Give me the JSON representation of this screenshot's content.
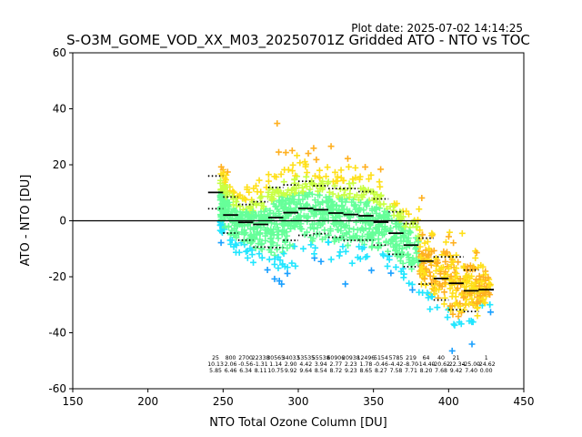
{
  "chart_data": {
    "type": "scatter",
    "title": "S-O3M_GOME_VOD_XX_M03_20250701Z Gridded ATO - NTO vs TOC",
    "plot_date": "Plot date: 2025-07-02 14:14:25",
    "xlabel": "NTO Total Ozone Column [DU]",
    "ylabel": "ATO - NTO [DU]",
    "xlim": [
      150,
      450
    ],
    "ylim": [
      -60,
      60
    ],
    "xticks": [
      150,
      200,
      250,
      300,
      350,
      400,
      450
    ],
    "yticks": [
      -60,
      -40,
      -20,
      0,
      20,
      40,
      60
    ],
    "zero_line": 0,
    "marker": "plus",
    "color_scale": [
      "#0a2bd8",
      "#1aa0ff",
      "#22e6ff",
      "#66ff99",
      "#c8ff44",
      "#ffe01a",
      "#ffb020"
    ],
    "scatter_cloud": {
      "x_range": [
        245,
        425
      ],
      "center_y": -2,
      "note_spread": "dense cloud of plus markers"
    },
    "bins": [
      {
        "x": 245,
        "count": "25",
        "mean": 10.13,
        "sd": 5.85,
        "upper": 16.0,
        "lower": 4.3
      },
      {
        "x": 255,
        "count": "800",
        "mean": 2.06,
        "sd": 6.46,
        "upper": 8.5,
        "lower": -4.4
      },
      {
        "x": 265,
        "count": "2700",
        "mean": -0.56,
        "sd": 6.34,
        "upper": 5.8,
        "lower": -6.9
      },
      {
        "x": 275,
        "count": "22338",
        "mean": -1.31,
        "sd": 8.11,
        "upper": 6.8,
        "lower": -9.4
      },
      {
        "x": 285,
        "count": "30565",
        "mean": 1.14,
        "sd": 10.75,
        "upper": 11.9,
        "lower": -9.6
      },
      {
        "x": 295,
        "count": "34033",
        "mean": 2.9,
        "sd": 9.92,
        "upper": 12.8,
        "lower": -7.0
      },
      {
        "x": 305,
        "count": "53535",
        "mean": 4.42,
        "sd": 9.64,
        "upper": 14.1,
        "lower": -5.2
      },
      {
        "x": 315,
        "count": "55538",
        "mean": 3.94,
        "sd": 8.54,
        "upper": 12.5,
        "lower": -4.6
      },
      {
        "x": 325,
        "count": "60906",
        "mean": 2.77,
        "sd": 8.72,
        "upper": 11.5,
        "lower": -5.9
      },
      {
        "x": 335,
        "count": "20938",
        "mean": 2.23,
        "sd": 9.23,
        "upper": 11.5,
        "lower": -7.0
      },
      {
        "x": 345,
        "count": "12496",
        "mean": 1.78,
        "sd": 8.65,
        "upper": 10.4,
        "lower": -6.9
      },
      {
        "x": 355,
        "count": "5154",
        "mean": -0.46,
        "sd": 8.27,
        "upper": 7.8,
        "lower": -8.7
      },
      {
        "x": 365,
        "count": "5785",
        "mean": -4.42,
        "sd": 7.58,
        "upper": 3.2,
        "lower": -12.0
      },
      {
        "x": 375,
        "count": "219",
        "mean": -8.7,
        "sd": 7.71,
        "upper": -1.0,
        "lower": -16.4
      },
      {
        "x": 385,
        "count": "64",
        "mean": -14.4,
        "sd": 8.2,
        "upper": -6.2,
        "lower": -22.6
      },
      {
        "x": 395,
        "count": "40",
        "mean": -20.6,
        "sd": 7.68,
        "upper": -12.9,
        "lower": -28.3
      },
      {
        "x": 405,
        "count": "21",
        "mean": -22.34,
        "sd": 9.42,
        "upper": -12.9,
        "lower": -31.8
      },
      {
        "x": 415,
        "count": "1",
        "mean": -25.0,
        "sd": 7.4,
        "upper": -17.6,
        "lower": -32.4
      },
      {
        "x": 425,
        "count": "1",
        "mean": -24.62,
        "sd": 0.0,
        "upper": -24.6,
        "lower": -24.6
      }
    ],
    "bin_stats_rows": {
      "counts": [
        "25",
        "800",
        "2700",
        "22338",
        "30565",
        "34033",
        "53535",
        "55538",
        "60906",
        "20938",
        "12496",
        "5154",
        "5785",
        "219",
        "64",
        "40",
        "21",
        "",
        "1"
      ],
      "means": [
        "10.13",
        "2.06",
        "-0.56",
        "-1.31",
        "1.14",
        "2.90",
        "4.42",
        "3.94",
        "2.77",
        "2.23",
        "1.78",
        "-0.46",
        "-4.42",
        "-8.70",
        "-14.40",
        "-20.62",
        "-22.34",
        "-25.00",
        "-24.62"
      ],
      "sds": [
        "5.85",
        "6.46",
        "6.34",
        "8.11",
        "10.75",
        "9.92",
        "9.64",
        "8.54",
        "8.72",
        "9.23",
        "8.65",
        "8.27",
        "7.58",
        "7.71",
        "8.20",
        "7.68",
        "9.42",
        "7.40",
        "0.00"
      ]
    }
  }
}
